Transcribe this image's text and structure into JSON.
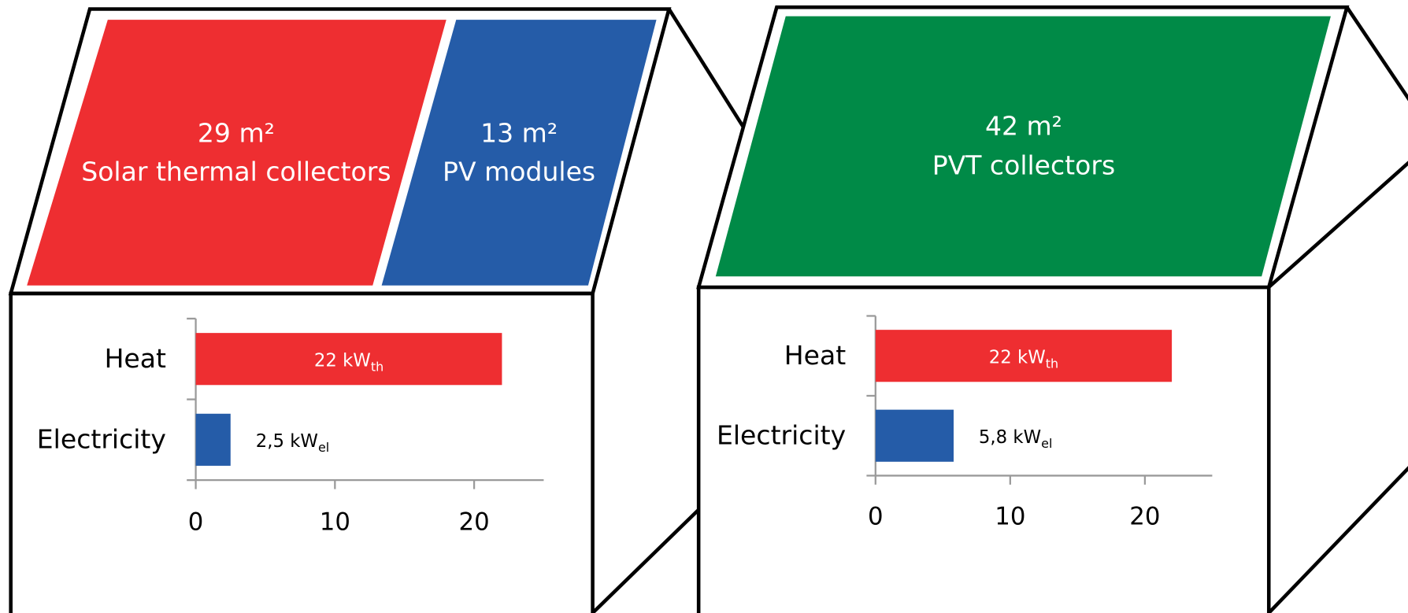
{
  "roofs": [
    {
      "panels": [
        {
          "area": "29 m²",
          "label": "Solar thermal collectors",
          "color": "#ee2e31"
        },
        {
          "area": "13 m²",
          "label": "PV modules",
          "color": "#255ca8"
        }
      ]
    },
    {
      "panels": [
        {
          "area": "42 m²",
          "label": "PVT collectors",
          "color": "#008a47"
        }
      ]
    }
  ],
  "chart_data": [
    {
      "type": "bar",
      "orientation": "horizontal",
      "categories": [
        "Heat",
        "Electricity"
      ],
      "values": [
        22,
        2.5
      ],
      "value_labels": [
        "22 kW",
        "2,5 kW"
      ],
      "value_label_subscripts": [
        "th",
        "el"
      ],
      "colors": [
        "#ee2e31",
        "#255ca8"
      ],
      "xlim": [
        0,
        25
      ],
      "xticks": [
        0,
        10,
        20
      ]
    },
    {
      "type": "bar",
      "orientation": "horizontal",
      "categories": [
        "Heat",
        "Electricity"
      ],
      "values": [
        22,
        5.8
      ],
      "value_labels": [
        "22 kW",
        "5,8 kW"
      ],
      "value_label_subscripts": [
        "th",
        "el"
      ],
      "colors": [
        "#ee2e31",
        "#255ca8"
      ],
      "xlim": [
        0,
        25
      ],
      "xticks": [
        0,
        10,
        20
      ]
    }
  ]
}
